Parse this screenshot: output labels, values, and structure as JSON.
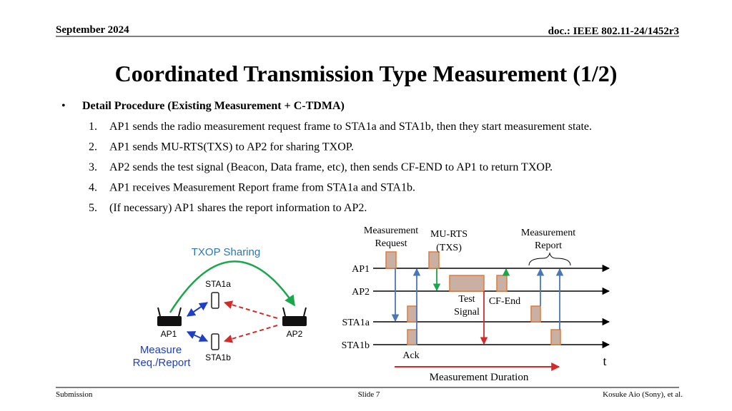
{
  "header": {
    "date": "September 2024",
    "doc": "doc.: IEEE 802.11-24/1452r3"
  },
  "title": "Coordinated Transmission Type Measurement (1/2)",
  "bullet": "Detail Procedure (Existing Measurement + C-TDMA)",
  "steps": [
    {
      "num": "1.",
      "text": "AP1 sends the radio measurement request frame to STA1a and STA1b, then they start measurement state."
    },
    {
      "num": "2.",
      "text": "AP1 sends MU-RTS(TXS) to AP2 for sharing TXOP."
    },
    {
      "num": "3.",
      "text": "AP2 sends the test signal (Beacon, Data frame, etc), then sends CF-END to AP1 to return TXOP."
    },
    {
      "num": "4.",
      "text": "AP1 receives Measurement Report frame from STA1a and STA1b."
    },
    {
      "num": "5.",
      "text": "(If necessary) AP1 shares the report information to AP2."
    }
  ],
  "topology": {
    "title": "TXOP Sharing",
    "ap1": "AP1",
    "ap2": "AP2",
    "sta1a": "STA1a",
    "sta1b": "STA1b",
    "measure": [
      "Measure",
      "Req./Report"
    ]
  },
  "timing": {
    "rows": [
      "AP1",
      "AP2",
      "STA1a",
      "STA1b"
    ],
    "request": [
      "Measurement",
      "Request"
    ],
    "murts": [
      "MU-RTS",
      "(TXS)"
    ],
    "report": [
      "Measurement",
      "Report"
    ],
    "test": [
      "Test",
      "Signal"
    ],
    "cfend": "CF-End",
    "ack": "Ack",
    "t": "t",
    "duration": "Measurement Duration"
  },
  "footer": {
    "left": "Submission",
    "center": "Slide 7",
    "right": "Kosuke Aio (Sony), et al."
  }
}
